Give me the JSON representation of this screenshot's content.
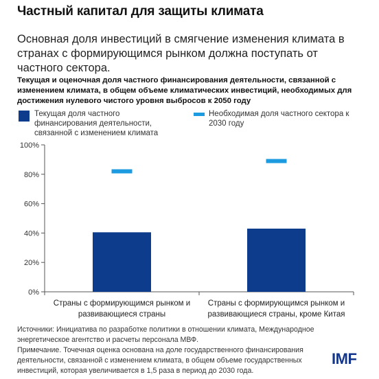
{
  "title": "Частный капитал для защиты климата",
  "subtitle": "Основная доля инвестиций в смягчение изменения климата в странах с формирующимся рынком должна поступать от частного сектора.",
  "description": "Текущая и оценочная доля частного финансирования деятельности, связанной с изменением климата, в общем объеме климатических инвестиций, необходимых для достижения нулевого чистого уровня выбросов к 2050 году",
  "legend": {
    "current": "Текущая доля частного финансирования деятельности, связанной с изменением климата",
    "needed": "Необходимая доля частного сектора к 2030 году"
  },
  "colors": {
    "current": "#0d3c8c",
    "needed": "#1c9be0"
  },
  "chart_data": {
    "type": "bar",
    "categories": [
      [
        "Страны с формирующимся рынком и",
        "развивающиеся страны"
      ],
      [
        "Страны с формирующимся рынком и",
        "развивающиеся страны, кроме Китая"
      ]
    ],
    "series": [
      {
        "name": "Текущая доля частного финансирования деятельности, связанной с изменением климата",
        "kind": "bar",
        "values": [
          40.5,
          43
        ]
      },
      {
        "name": "Необходимая доля частного сектора к 2030 году",
        "kind": "marker",
        "values": [
          82,
          89
        ]
      }
    ],
    "ylim": [
      0,
      100
    ],
    "yticks": [
      0,
      20,
      40,
      60,
      80,
      100
    ],
    "ytick_labels": [
      "0%",
      "20%",
      "40%",
      "60%",
      "80%",
      "100%"
    ],
    "grid": false
  },
  "sources": "Источники: Инициатива по разработке политики в отношении климата, Международное энергетическое агентство и расчеты персонала МВФ.",
  "note": "Примечание. Точечная оценка основана на доле государственного финансирования деятельности, связанной с изменением климата, в общем объеме государственных инвестиций, которая увеличивается в 1,5 раза в период до 2030 года.",
  "logo": "IMF"
}
